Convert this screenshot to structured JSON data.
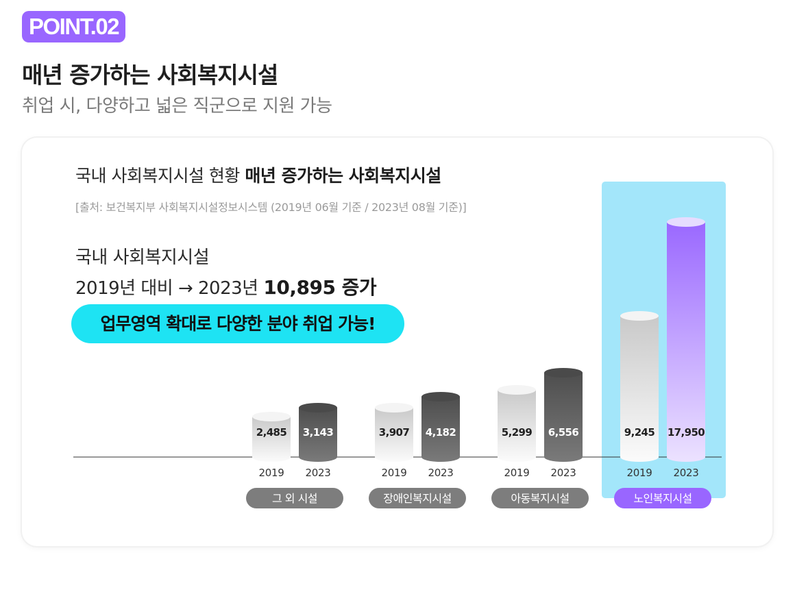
{
  "badge": "POINT.02",
  "headline": "매년 증가하는 사회복지시설",
  "subheadline": "취업 시, 다양하고 넓은 직군으로 지원 가능",
  "card": {
    "heading_prefix": "국내 사회복지시설 현황",
    "heading_bold": "매년 증가하는 사회복지시설",
    "source": "[출처: 보건복지부 사회복지시설정보시스템 (2019년 06월 기준 / 2023년 08월 기준)]",
    "summary_line1": "국내 사회복지시설",
    "summary_line2_prefix": "2019년 대비 → 2023년",
    "summary_line2_bold": "10,895 증가",
    "callout": "업무영역 확대로 다양한 분야 취업 가능!"
  },
  "colors": {
    "accent": "#9966ff",
    "cyan_pill": "#1ee3f3",
    "highlight_bg": "#a3e6fa",
    "bar_2019": "#e8e8e8",
    "bar_2023": "#5e5e5e",
    "bar_2023_highlight": "#9f6fff",
    "category_pill": "#7d7d7d"
  },
  "chart_data": {
    "type": "bar",
    "categories": [
      "그 외 시설",
      "장애인복지시설",
      "아동복지시설",
      "노인복지시설"
    ],
    "series": [
      {
        "name": "2019",
        "values": [
          2485,
          3907,
          5299,
          9245
        ],
        "labels": [
          "2,485",
          "3,907",
          "5,299",
          "9,245"
        ]
      },
      {
        "name": "2023",
        "values": [
          3143,
          4182,
          6556,
          17950
        ],
        "labels": [
          "3,143",
          "4,182",
          "6,556",
          "17,950"
        ]
      }
    ],
    "highlight_category": "노인복지시설",
    "ylim": [
      0,
      18000
    ]
  }
}
